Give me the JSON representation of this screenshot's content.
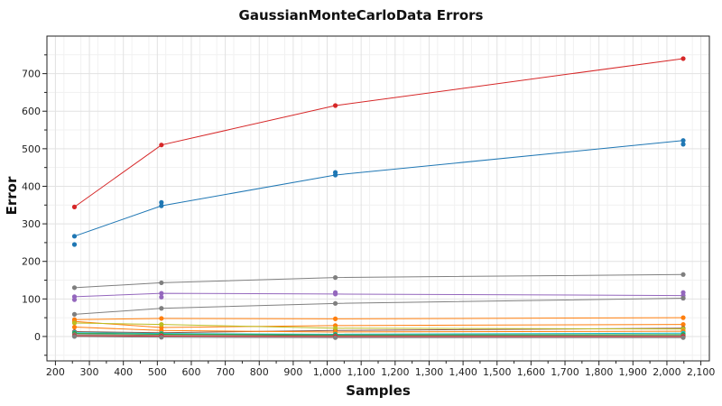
{
  "chart_data": {
    "type": "line",
    "title": "GaussianMonteCarloData Errors",
    "xlabel": "Samples",
    "ylabel": "Error",
    "xlim": [
      175,
      2125
    ],
    "ylim": [
      -65,
      800
    ],
    "x_ticks": [
      200,
      300,
      400,
      500,
      600,
      700,
      800,
      900,
      1000,
      1100,
      1200,
      1300,
      1400,
      1500,
      1600,
      1700,
      1800,
      1900,
      2000,
      2100
    ],
    "x_tick_labels": [
      "200",
      "300",
      "400",
      "500",
      "600",
      "700",
      "800",
      "900",
      "1,000",
      "1,100",
      "1,200",
      "1,300",
      "1,400",
      "1,500",
      "1,600",
      "1,700",
      "1,800",
      "1,900",
      "2,000",
      "2,100"
    ],
    "y_ticks": [
      0,
      100,
      200,
      300,
      400,
      500,
      600,
      700
    ],
    "y_tick_labels": [
      "0",
      "100",
      "200",
      "300",
      "400",
      "500",
      "600",
      "700"
    ],
    "grid": true,
    "x": [
      256,
      512,
      1024,
      2048
    ],
    "series": [
      {
        "color": "#d62728",
        "values": [
          345,
          510,
          615,
          740
        ],
        "extra_points": []
      },
      {
        "color": "#1f77b4",
        "values": [
          267,
          348,
          430,
          522
        ],
        "extra_points": [
          [
            256,
            245
          ],
          [
            512,
            357
          ],
          [
            1024,
            437
          ],
          [
            2048,
            512
          ]
        ]
      },
      {
        "color": "#7f7f7f",
        "values": [
          130,
          143,
          157,
          165
        ],
        "extra_points": []
      },
      {
        "color": "#9467bd",
        "values": [
          106,
          115,
          113,
          109
        ],
        "extra_points": [
          [
            256,
            98
          ],
          [
            512,
            105
          ],
          [
            1024,
            117
          ],
          [
            2048,
            102
          ],
          [
            2048,
            117
          ]
        ]
      },
      {
        "color": "#7f7f7f",
        "values": [
          59,
          75,
          88,
          102
        ],
        "extra_points": []
      },
      {
        "color": "#ff7f0e",
        "values": [
          45,
          48,
          47,
          50
        ],
        "extra_points": []
      },
      {
        "color": "#ff7f0e",
        "values": [
          40,
          24,
          29,
          32
        ],
        "extra_points": []
      },
      {
        "color": "#8c564b",
        "values": [
          13,
          10,
          16,
          22
        ],
        "extra_points": []
      },
      {
        "color": "#bcbd22",
        "values": [
          36,
          32,
          22,
          20
        ],
        "extra_points": []
      },
      {
        "color": "#ff7f0e",
        "values": [
          25,
          16,
          12,
          14
        ],
        "extra_points": []
      },
      {
        "color": "#17becf",
        "values": [
          10,
          8,
          6,
          9
        ],
        "extra_points": []
      },
      {
        "color": "#2ca02c",
        "values": [
          8,
          6,
          4,
          5
        ],
        "extra_points": []
      },
      {
        "color": "#7f7f7f",
        "values": [
          5,
          3,
          2,
          2
        ],
        "extra_points": []
      },
      {
        "color": "#d62728",
        "values": [
          2,
          1,
          0,
          0
        ],
        "extra_points": []
      },
      {
        "color": "#7f7f7f",
        "values": [
          0,
          -2,
          -3,
          -3
        ],
        "extra_points": []
      }
    ]
  }
}
